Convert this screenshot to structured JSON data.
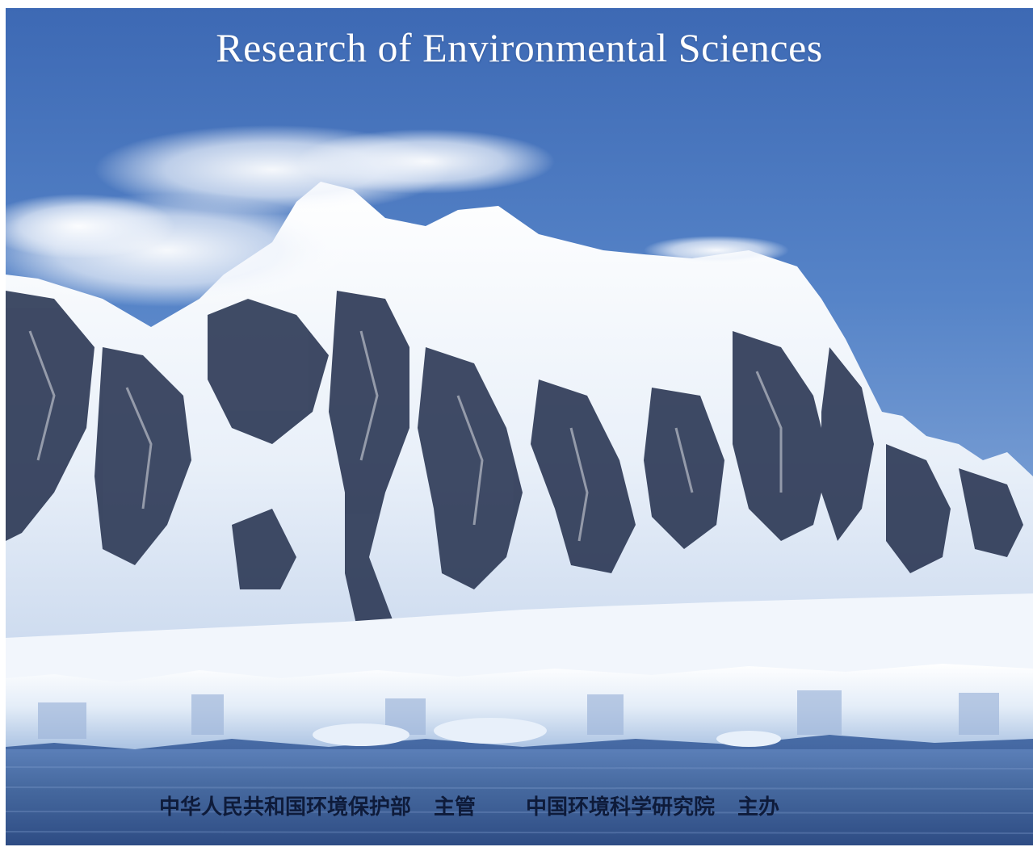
{
  "cover": {
    "title": "Research of Environmental Sciences",
    "footer": {
      "supervisor_org": "中华人民共和国环境保护部",
      "supervisor_role": "主管",
      "sponsor_org": "中国环境科学研究院",
      "sponsor_role": "主办"
    }
  },
  "colors": {
    "sky": "#4d7cc3",
    "snow": "#f4f8fd",
    "rock": "#2a3550",
    "water": "#3d5f9a",
    "footer_text": "#0e1b3a"
  }
}
